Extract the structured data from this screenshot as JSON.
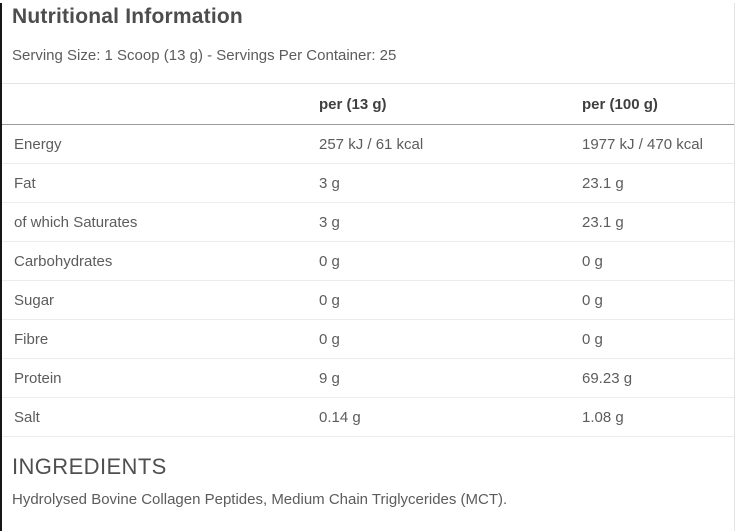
{
  "page": {
    "title": "Nutritional Information",
    "serving_info": "Serving Size: 1 Scoop (13 g) - Servings Per Container: 25"
  },
  "nutrition_table": {
    "columns": [
      "",
      "per (13 g)",
      "per (100 g)"
    ],
    "rows": [
      {
        "label": "Energy",
        "per_serving": "257 kJ / 61 kcal",
        "per_100g": "1977 kJ / 470 kcal"
      },
      {
        "label": "Fat",
        "per_serving": "3 g",
        "per_100g": "23.1 g"
      },
      {
        "label": "of which Saturates",
        "per_serving": "3 g",
        "per_100g": "23.1 g"
      },
      {
        "label": "Carbohydrates",
        "per_serving": "0 g",
        "per_100g": "0 g"
      },
      {
        "label": "Sugar",
        "per_serving": "0 g",
        "per_100g": "0 g"
      },
      {
        "label": "Fibre",
        "per_serving": "0 g",
        "per_100g": "0 g"
      },
      {
        "label": "Protein",
        "per_serving": "9 g",
        "per_100g": "69.23 g"
      },
      {
        "label": "Salt",
        "per_serving": "0.14 g",
        "per_100g": "1.08 g"
      }
    ]
  },
  "ingredients": {
    "heading": "INGREDIENTS",
    "text": "Hydrolysed Bovine Collagen Peptides, Medium Chain Triglycerides (MCT)."
  },
  "colors": {
    "title_text": "#4d4d4d",
    "body_text": "#5c5c5c",
    "header_text": "#404040",
    "row_divider": "#ececec",
    "header_divider": "#9a9a9a",
    "edge_border": "#161616",
    "background": "#ffffff"
  }
}
